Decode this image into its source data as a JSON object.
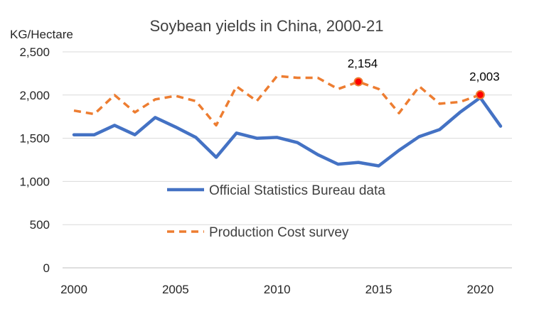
{
  "chart_data": {
    "type": "line",
    "title": "Soybean yields in China, 2000-21",
    "ylabel": "KG/Hectare",
    "xlabel": "",
    "ylim": [
      0,
      2500
    ],
    "xlim": [
      2000,
      2021
    ],
    "yticks": [
      {
        "value": 0,
        "label": "0"
      },
      {
        "value": 500,
        "label": "500"
      },
      {
        "value": 1000,
        "label": "1,000"
      },
      {
        "value": 1500,
        "label": "1,500"
      },
      {
        "value": 2000,
        "label": "2,000"
      },
      {
        "value": 2500,
        "label": "2,500"
      }
    ],
    "xticks": [
      {
        "value": 2000,
        "label": "2000"
      },
      {
        "value": 2005,
        "label": "2005"
      },
      {
        "value": 2010,
        "label": "2010"
      },
      {
        "value": 2015,
        "label": "2015"
      },
      {
        "value": 2020,
        "label": "2020"
      }
    ],
    "grid": "horizontal",
    "x": [
      2000,
      2001,
      2002,
      2003,
      2004,
      2005,
      2006,
      2007,
      2008,
      2009,
      2010,
      2011,
      2012,
      2013,
      2014,
      2015,
      2016,
      2017,
      2018,
      2019,
      2020,
      2021
    ],
    "series": [
      {
        "name": "Official Statistics Bureau data",
        "color": "#4472C4",
        "style": "solid",
        "values": [
          1540,
          1540,
          1650,
          1540,
          1740,
          1630,
          1510,
          1280,
          1560,
          1500,
          1510,
          1450,
          1310,
          1200,
          1220,
          1180,
          1360,
          1520,
          1600,
          1800,
          1970,
          1640
        ]
      },
      {
        "name": "Production Cost survey",
        "color": "#ED7D31",
        "style": "dashed",
        "values": [
          1820,
          1780,
          2000,
          1800,
          1950,
          1990,
          1930,
          1650,
          2100,
          1930,
          2220,
          2200,
          2200,
          2070,
          2154,
          2070,
          1790,
          2100,
          1900,
          1920,
          2003,
          null
        ]
      }
    ],
    "annotations": [
      {
        "series": 1,
        "x": 2014,
        "label": "2,154"
      },
      {
        "series": 1,
        "x": 2020,
        "label": "2,003"
      }
    ],
    "legend_position": "center-inside"
  }
}
